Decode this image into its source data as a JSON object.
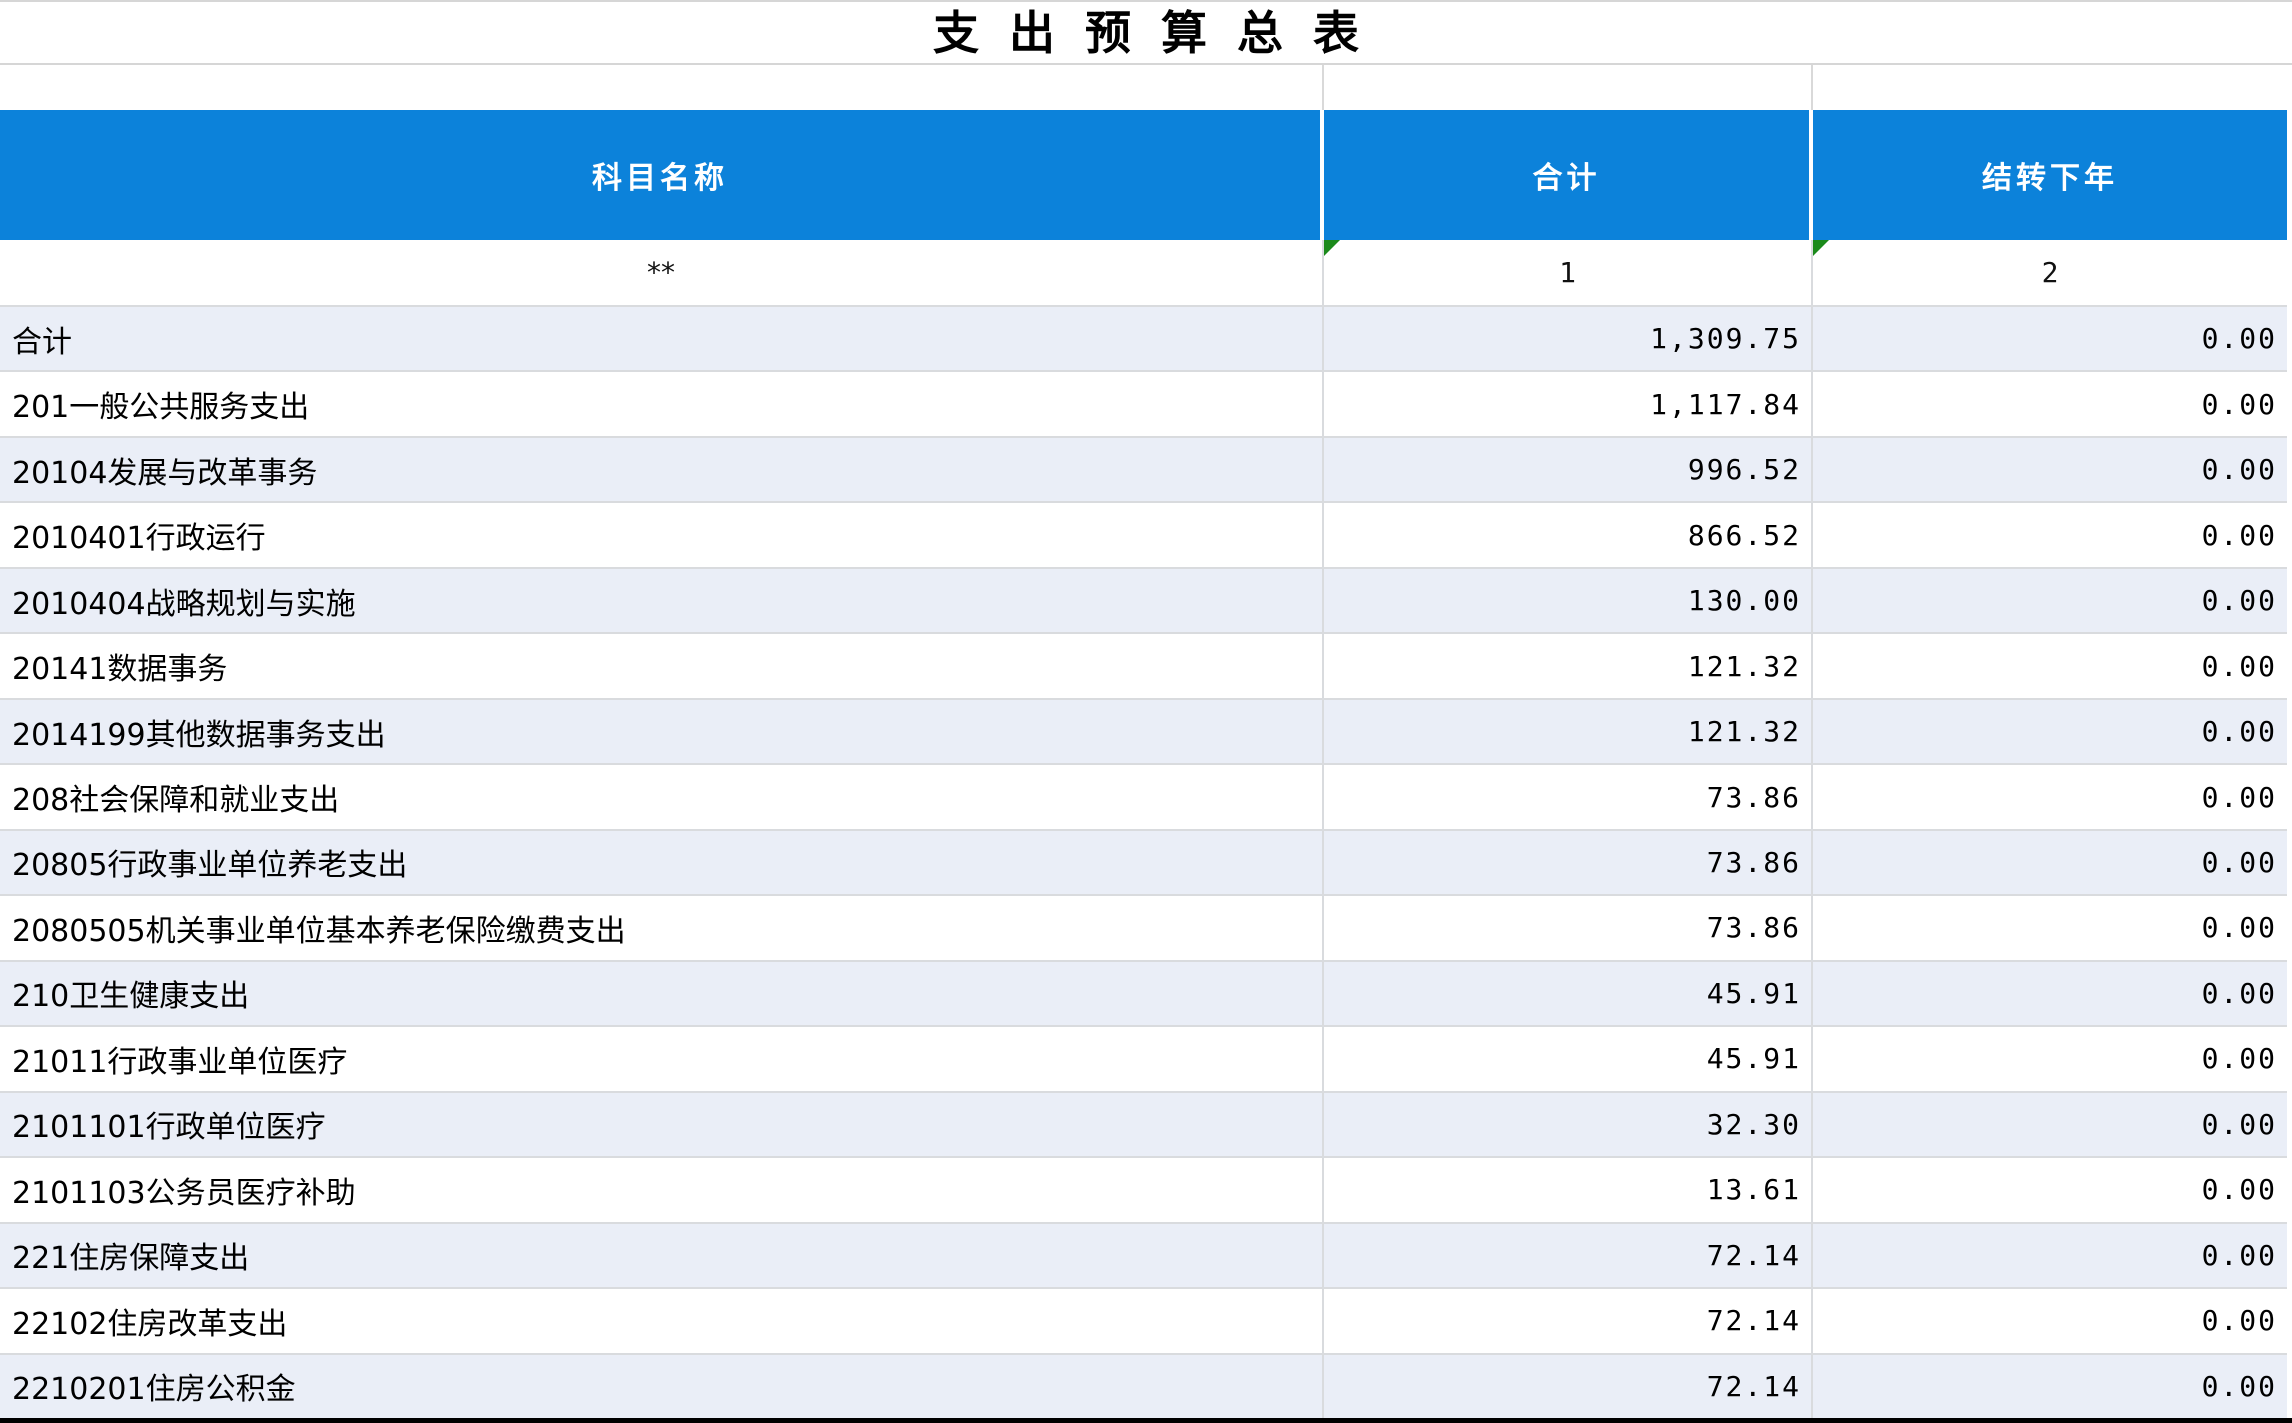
{
  "title": "支出预算总表",
  "table": {
    "header": {
      "subject": "科目名称",
      "total": "合计",
      "carryover": "结转下年"
    },
    "code_row": {
      "subject": "**",
      "total": "1",
      "carryover": "2"
    },
    "rows": [
      {
        "name": "合计",
        "total": "1,309.75",
        "carryover": "0.00"
      },
      {
        "name": "201一般公共服务支出",
        "total": "1,117.84",
        "carryover": "0.00"
      },
      {
        "name": "20104发展与改革事务",
        "total": "996.52",
        "carryover": "0.00"
      },
      {
        "name": "2010401行政运行",
        "total": "866.52",
        "carryover": "0.00"
      },
      {
        "name": "2010404战略规划与实施",
        "total": "130.00",
        "carryover": "0.00"
      },
      {
        "name": "20141数据事务",
        "total": "121.32",
        "carryover": "0.00"
      },
      {
        "name": "2014199其他数据事务支出",
        "total": "121.32",
        "carryover": "0.00"
      },
      {
        "name": "208社会保障和就业支出",
        "total": "73.86",
        "carryover": "0.00"
      },
      {
        "name": "20805行政事业单位养老支出",
        "total": "73.86",
        "carryover": "0.00"
      },
      {
        "name": "2080505机关事业单位基本养老保险缴费支出",
        "total": "73.86",
        "carryover": "0.00"
      },
      {
        "name": "210卫生健康支出",
        "total": "45.91",
        "carryover": "0.00"
      },
      {
        "name": "21011行政事业单位医疗",
        "total": "45.91",
        "carryover": "0.00"
      },
      {
        "name": "2101101行政单位医疗",
        "total": "32.30",
        "carryover": "0.00"
      },
      {
        "name": "2101103公务员医疗补助",
        "total": "13.61",
        "carryover": "0.00"
      },
      {
        "name": "221住房保障支出",
        "total": "72.14",
        "carryover": "0.00"
      },
      {
        "name": "22102住房改革支出",
        "total": "72.14",
        "carryover": "0.00"
      },
      {
        "name": "2210201住房公积金",
        "total": "72.14",
        "carryover": "0.00"
      }
    ]
  },
  "colors": {
    "header_blue": "#0c82da",
    "stripe": "#eaeef7",
    "grid_line": "#d9dbde",
    "error_flag_green": "#1b8a1b",
    "bottom_border": "#000000"
  }
}
